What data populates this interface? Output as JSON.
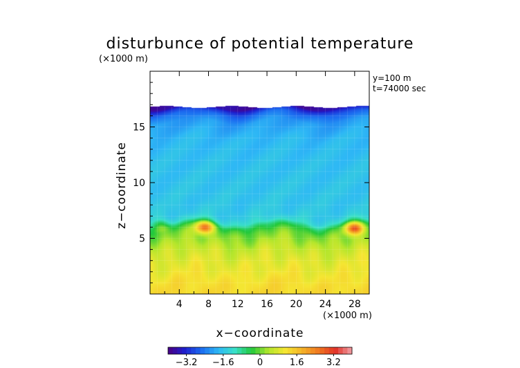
{
  "chart_data": {
    "type": "heatmap",
    "title": "disturbunce of potential temperature",
    "y_unit_note": "(×1000 m)",
    "x_unit_note": "(×1000 m)",
    "xlabel": "x−coordinate",
    "ylabel": "z−coordinate",
    "annotations": [
      "y=100 m",
      "t=74000 sec"
    ],
    "x_ticks": [
      4,
      8,
      12,
      16,
      20,
      24,
      28
    ],
    "y_ticks": [
      5,
      10,
      15
    ],
    "xlim": [
      0,
      30
    ],
    "ylim": [
      0,
      20
    ],
    "top_of_data_z": 16.8,
    "colorbar": {
      "range": [
        -4,
        4
      ],
      "tick_values": [
        -3.2,
        -1.6,
        0,
        1.6,
        3.2
      ],
      "tick_labels": [
        "−3.2",
        "−1.6",
        "0",
        "1.6",
        "3.2"
      ],
      "colors": [
        "#4b0082",
        "#1e1ecd",
        "#1c6cf0",
        "#2eb8f5",
        "#3ae0c8",
        "#22c83c",
        "#b4e62c",
        "#f5e632",
        "#f5b428",
        "#f07820",
        "#e13226",
        "#f0a0a8"
      ]
    },
    "value_profile_by_height": {
      "z": [
        0,
        1,
        2,
        3,
        4,
        5,
        5.5,
        6,
        6.5,
        7,
        8,
        10,
        12,
        14,
        15.5,
        16.2,
        16.6,
        16.8
      ],
      "value": [
        1.3,
        1.2,
        1.0,
        0.85,
        0.6,
        0.2,
        0.0,
        -0.4,
        -1.2,
        -1.5,
        -1.6,
        -1.65,
        -1.7,
        -1.8,
        -2.1,
        -2.6,
        -3.2,
        -3.7
      ]
    },
    "warm_anomalies": [
      {
        "x": 7.5,
        "z": 6.0,
        "value": 2.4
      },
      {
        "x": 28.0,
        "z": 5.9,
        "value": 2.6
      },
      {
        "x": 1.5,
        "z": 6.1,
        "value": 0.4
      }
    ]
  }
}
